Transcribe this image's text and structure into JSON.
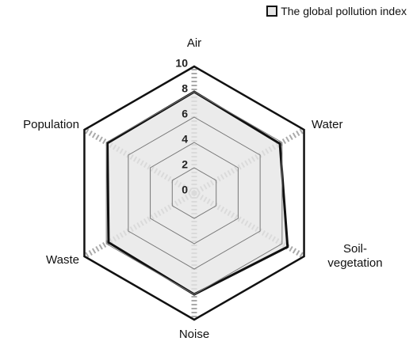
{
  "chart_data": {
    "type": "radar",
    "categories": [
      "Air",
      "Water",
      "Soil-vegetation",
      "Noise",
      "Waste",
      "Population"
    ],
    "series": [
      {
        "name": "The global pollution index",
        "color": "#111111",
        "values": [
          8,
          7.8,
          8.5,
          8,
          7.8,
          7.9
        ]
      }
    ],
    "rlim": [
      0,
      10
    ],
    "rticks": [
      0,
      2,
      4,
      6,
      8,
      10
    ],
    "grid": true,
    "legend": "top-right"
  }
}
